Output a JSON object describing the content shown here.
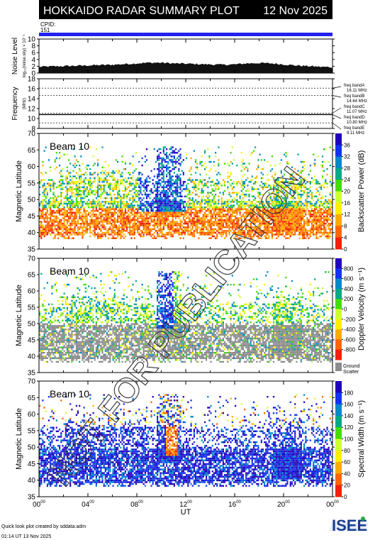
{
  "header": {
    "title": "HOKKAIDO RADAR SUMMARY PLOT",
    "date": "12 Nov 2025",
    "cpid_label": "CPID:",
    "cpid_value": "151"
  },
  "colors": {
    "header_bg": "#000000",
    "header_text": "#ffffff",
    "cpid_bar": "#2222ee",
    "frequency_line": "#000000",
    "ground_scatter": "#8c8c8c",
    "watermark": "#333333",
    "logo_text": "#1a3d8f",
    "logo_accent": "#22aa44"
  },
  "watermark": "NOT FOR PUBLICATION",
  "footer": {
    "credit": "Quick look plot created by sddata.adm",
    "generated": "01:14 UT 13 Nov 2025"
  },
  "logo": {
    "text": "ISEE"
  },
  "chart_data": [
    {
      "type": "area",
      "panel": "noise",
      "ylabel": "Noise Level",
      "ylabel_sub": "log₁₀(noise.sky) × 10⁻¹",
      "ylim": [
        0,
        10
      ],
      "yticks": [
        "0",
        "2",
        "4",
        "6",
        "8",
        "10"
      ],
      "x_hours": [
        0,
        1,
        2,
        3,
        4,
        5,
        6,
        7,
        8,
        9,
        10,
        11,
        12,
        13,
        14,
        15,
        16,
        17,
        18,
        19,
        20,
        21,
        22,
        23,
        24
      ],
      "values": [
        1.6,
        1.7,
        1.8,
        1.9,
        2.0,
        2.1,
        2.2,
        2.4,
        2.6,
        2.8,
        2.8,
        2.6,
        2.5,
        2.4,
        2.3,
        2.2,
        2.3,
        2.6,
        2.7,
        2.6,
        2.3,
        2.0,
        1.8,
        1.6,
        1.5
      ]
    },
    {
      "type": "line",
      "panel": "frequency",
      "ylabel": "Frequency",
      "ylabel_sub": "(MHz)",
      "ylim": [
        8,
        18
      ],
      "yticks": [
        "8",
        "10",
        "12",
        "14",
        "16",
        "18"
      ],
      "series": [
        {
          "values": [
            10.8,
            10.8
          ]
        }
      ],
      "reference_lines": [
        {
          "label": "freq bandA",
          "value": 16.11,
          "text": "16.11 MHz"
        },
        {
          "label": "freq bandB",
          "value": 14.64,
          "text": "14.64 MHz"
        },
        {
          "label": "freq bandC",
          "value": 11.07,
          "text": "11.07 MHz"
        },
        {
          "label": "freq bandD",
          "value": 10.8,
          "text": "10.80 MHz"
        },
        {
          "label": "freq bandE",
          "value": 9.11,
          "text": "9.11 MHz"
        }
      ]
    },
    {
      "type": "heatmap",
      "panel": "power",
      "beam_label": "Beam 10",
      "ylabel": "Magnetic Latitude",
      "ylim": [
        35,
        70
      ],
      "yticks": [
        "35",
        "40",
        "45",
        "50",
        "55",
        "60",
        "65",
        "70"
      ],
      "colorbar": {
        "label": "Backscatter Power (dB)",
        "ticks": [
          "0",
          "4",
          "8",
          "12",
          "16",
          "20",
          "24",
          "28",
          "32",
          "36"
        ],
        "range": [
          0,
          40
        ],
        "colors": [
          "#ee2200",
          "#ff6600",
          "#ffaa00",
          "#ffee00",
          "#ccff33",
          "#44dd00",
          "#00aa88",
          "#0088cc",
          "#1133ee",
          "#2200bb"
        ]
      }
    },
    {
      "type": "heatmap",
      "panel": "velocity",
      "beam_label": "Beam 10",
      "ylabel": "Magnetic Latitude",
      "ylim": [
        35,
        70
      ],
      "yticks": [
        "35",
        "40",
        "45",
        "50",
        "55",
        "60",
        "65",
        "70"
      ],
      "colorbar": {
        "label": "Doppler Velocity (m s⁻¹)",
        "ticks": [
          "-800",
          "-600",
          "-400",
          "-200",
          "0",
          "200",
          "400",
          "600",
          "800"
        ],
        "range": [
          -1000,
          1000
        ],
        "colors": [
          "#ee2200",
          "#ff6600",
          "#ffaa00",
          "#ffee00",
          "#ccff33",
          "#44dd00",
          "#00aa88",
          "#0088cc",
          "#1133ee",
          "#2200bb"
        ],
        "ground_scatter_label": "Ground Scatter"
      }
    },
    {
      "type": "heatmap",
      "panel": "width",
      "beam_label": "Beam 10",
      "ylabel": "Magnetic Latitude",
      "ylim": [
        35,
        70
      ],
      "yticks": [
        "35",
        "40",
        "45",
        "50",
        "55",
        "60",
        "65",
        "70"
      ],
      "xlabel": "UT",
      "xticks": [
        "00",
        "04",
        "08",
        "12",
        "16",
        "20",
        "00"
      ],
      "xtick_sup": "00",
      "colorbar": {
        "label": "Spectral Width (m s⁻¹)",
        "ticks": [
          "0",
          "20",
          "40",
          "60",
          "80",
          "100",
          "120",
          "140",
          "160",
          "180"
        ],
        "range": [
          0,
          200
        ],
        "colors": [
          "#2200bb",
          "#1133ee",
          "#0088cc",
          "#00aa88",
          "#44dd00",
          "#ccff33",
          "#ffee00",
          "#ffaa00",
          "#ff6600",
          "#ee2200"
        ]
      }
    }
  ]
}
